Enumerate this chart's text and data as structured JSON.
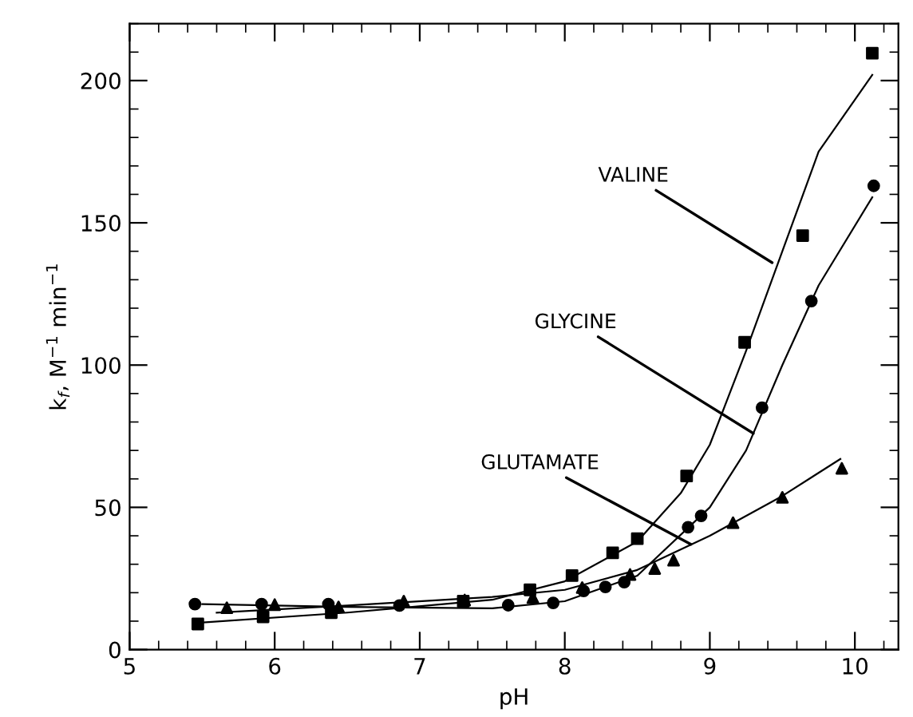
{
  "chart_data": {
    "type": "scatter",
    "xlabel": "pH",
    "ylabel": "k$_{f}$, M$^{−1}$ min$^{−1}$",
    "xlim": [
      5,
      10.3
    ],
    "ylim": [
      0,
      220
    ],
    "xticks": [
      5,
      6,
      7,
      8,
      9,
      10
    ],
    "yticks": [
      0,
      50,
      100,
      150,
      200
    ],
    "grid": false,
    "legend": false,
    "series": [
      {
        "marker": "square",
        "color": "#000000",
        "x": [
          5.47,
          5.92,
          6.39,
          7.3,
          7.76,
          8.05,
          8.33,
          8.5,
          8.84,
          9.24,
          9.64,
          10.12
        ],
        "values": [
          9,
          11.5,
          13,
          17,
          21,
          26,
          34,
          39,
          61,
          108,
          145.5,
          209.6
        ]
      },
      {
        "marker": "circle",
        "color": "#000000",
        "x": [
          5.45,
          5.91,
          6.37,
          6.86,
          7.61,
          7.92,
          8.13,
          8.28,
          8.41,
          8.85,
          8.94,
          9.36,
          9.7,
          10.13
        ],
        "values": [
          16,
          16,
          16,
          15.5,
          15.6,
          16.4,
          20.6,
          22,
          23.7,
          43,
          47,
          85,
          122.5,
          163
        ]
      },
      {
        "marker": "triangle",
        "color": "#000000",
        "x": [
          5.67,
          6.0,
          6.44,
          6.89,
          7.31,
          7.78,
          8.12,
          8.45,
          8.62,
          8.75,
          9.16,
          9.5,
          9.91
        ],
        "values": [
          14.7,
          15.8,
          15,
          17,
          17.4,
          18.3,
          21.8,
          26.4,
          28.5,
          31.4,
          44.6,
          53.5,
          63.7
        ]
      },
      {
        "type": "line",
        "marker": "none",
        "color": "#000000",
        "x": [
          5.5,
          6.5,
          7.5,
          8,
          8.5,
          8.8,
          9.0,
          9.25,
          9.5,
          9.75,
          10.12
        ],
        "values": [
          9.5,
          13,
          17.5,
          24,
          38,
          55,
          72,
          105,
          140,
          175,
          202
        ]
      },
      {
        "type": "line",
        "marker": "none",
        "color": "#000000",
        "x": [
          5.5,
          6.5,
          7.5,
          8,
          8.5,
          9,
          9.25,
          9.5,
          9.75,
          10.12
        ],
        "values": [
          16,
          15,
          14.5,
          17,
          26,
          50,
          70,
          100,
          128,
          159
        ]
      },
      {
        "type": "line",
        "marker": "none",
        "color": "#000000",
        "x": [
          5.6,
          6.5,
          7.5,
          8,
          8.5,
          9,
          9.5,
          9.9
        ],
        "values": [
          13,
          15.5,
          18.5,
          21,
          28,
          40,
          54,
          67
        ]
      }
    ],
    "annotations": [
      {
        "text": "VALINE",
        "x": 9.43,
        "y": 136
      },
      {
        "text": "GLYCINE",
        "x": 9.3,
        "y": 76
      },
      {
        "text": "GLUTAMATE",
        "x": 8.87,
        "y": 37
      }
    ]
  }
}
